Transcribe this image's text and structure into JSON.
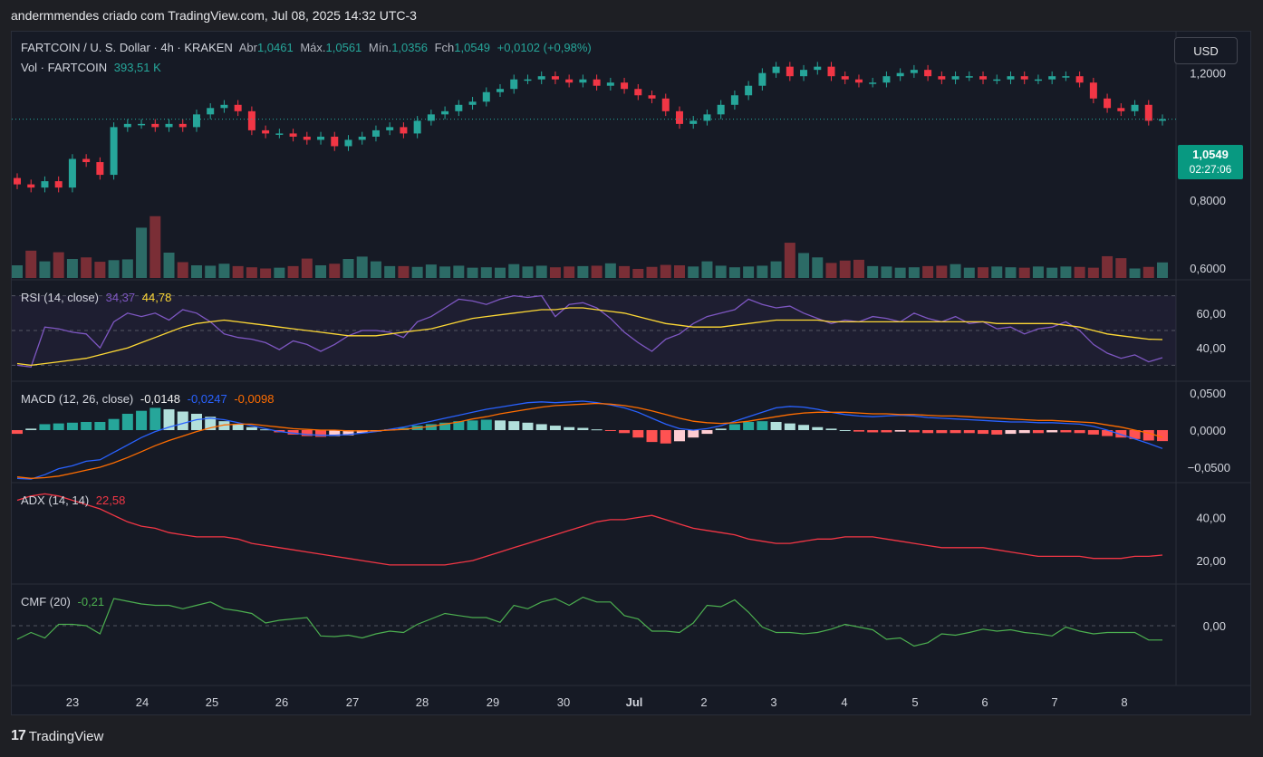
{
  "header": {
    "author_line": "andermmendes criado com TradingView.com, Jul 08, 2025 14:32 UTC-3"
  },
  "price_pane": {
    "symbol": "FARTCOIN / U. S. Dollar · 4h · KRAKEN",
    "open_label": "Abr",
    "open": "1,0461",
    "high_label": "Máx.",
    "high": "1,0561",
    "low_label": "Mín.",
    "low": "1,0356",
    "close_label": "Fch",
    "close": "1,0549",
    "change": "+0,0102 (+0,98%)",
    "vol_label": "Vol · FARTCOIN",
    "vol_value": "393,51 K",
    "currency_button": "USD",
    "last_price": "1,0549",
    "countdown": "02:27:06",
    "y_ticks": [
      "1,2000",
      "0,8000",
      "0,6000"
    ]
  },
  "rsi_pane": {
    "label": "RSI (14, close)",
    "rsi": "34,37",
    "ma": "44,78",
    "y_ticks": [
      "60,00",
      "40,00"
    ]
  },
  "macd_pane": {
    "label": "MACD (12, 26, close)",
    "hist": "-0,0148",
    "macd": "-0,0247",
    "signal": "-0,0098",
    "y_ticks": [
      "0,0500",
      "0,0000",
      "−0,0500"
    ]
  },
  "adx_pane": {
    "label": "ADX (14, 14)",
    "value": "22,58",
    "y_ticks": [
      "40,00",
      "20,00"
    ]
  },
  "cmf_pane": {
    "label": "CMF (20)",
    "value": "-0,21",
    "y_ticks": [
      "0,00"
    ]
  },
  "x_axis": [
    "23",
    "24",
    "25",
    "26",
    "27",
    "28",
    "29",
    "30",
    "Jul",
    "2",
    "3",
    "4",
    "5",
    "6",
    "7",
    "8"
  ],
  "brand": "TradingView",
  "colors": {
    "up": "#26a69a",
    "down": "#f23645",
    "rsi": "#7e57c2",
    "rsi_ma": "#fdd835",
    "macd": "#2962ff",
    "signal": "#ff6d00",
    "adx": "#f23645",
    "cmf": "#4caf50"
  },
  "chart_data": {
    "type": "line",
    "close_series": [
      0.85,
      0.84,
      0.86,
      0.84,
      0.93,
      0.92,
      0.88,
      1.03,
      1.04,
      1.04,
      1.03,
      1.04,
      1.03,
      1.07,
      1.09,
      1.1,
      1.08,
      1.02,
      1.01,
      1.01,
      1.0,
      0.99,
      1.0,
      0.97,
      0.99,
      1.0,
      1.02,
      1.03,
      1.01,
      1.05,
      1.07,
      1.08,
      1.1,
      1.11,
      1.14,
      1.15,
      1.18,
      1.18,
      1.19,
      1.18,
      1.17,
      1.18,
      1.16,
      1.17,
      1.15,
      1.13,
      1.12,
      1.08,
      1.04,
      1.05,
      1.07,
      1.1,
      1.13,
      1.16,
      1.2,
      1.22,
      1.19,
      1.21,
      1.22,
      1.19,
      1.18,
      1.17,
      1.17,
      1.19,
      1.2,
      1.21,
      1.19,
      1.18,
      1.19,
      1.19,
      1.18,
      1.18,
      1.19,
      1.18,
      1.18,
      1.19,
      1.19,
      1.17,
      1.12,
      1.09,
      1.08,
      1.1,
      1.05,
      1.055
    ],
    "volume_k": [
      320,
      690,
      420,
      650,
      480,
      520,
      410,
      450,
      470,
      1270,
      1560,
      640,
      400,
      320,
      310,
      360,
      300,
      270,
      240,
      260,
      300,
      490,
      320,
      360,
      480,
      540,
      420,
      300,
      300,
      280,
      340,
      290,
      310,
      260,
      270,
      260,
      350,
      290,
      310,
      270,
      290,
      300,
      310,
      370,
      300,
      230,
      280,
      330,
      320,
      290,
      420,
      310,
      270,
      290,
      310,
      420,
      890,
      630,
      520,
      380,
      440,
      460,
      300,
      290,
      260,
      270,
      300,
      310,
      350,
      260,
      270,
      290,
      270,
      260,
      290,
      260,
      290,
      280,
      260,
      550,
      500,
      240,
      280,
      393.51
    ],
    "rsi": [
      30,
      29,
      52,
      51,
      49,
      48,
      40,
      55,
      60,
      58,
      60,
      56,
      62,
      60,
      55,
      48,
      46,
      45,
      43,
      39,
      44,
      42,
      38,
      42,
      47,
      50,
      50,
      49,
      46,
      55,
      58,
      63,
      68,
      67,
      65,
      68,
      70,
      69,
      70,
      58,
      65,
      66,
      63,
      57,
      49,
      43,
      38,
      45,
      48,
      54,
      58,
      60,
      62,
      68,
      65,
      63,
      64,
      60,
      57,
      54,
      56,
      55,
      58,
      57,
      55,
      60,
      57,
      55,
      58,
      54,
      55,
      51,
      52,
      48,
      51,
      52,
      55,
      50,
      42,
      37,
      34,
      36,
      32,
      34.37
    ],
    "rsi_ma": [
      31,
      30,
      31,
      32,
      33,
      34,
      36,
      38,
      40,
      43,
      46,
      49,
      52,
      54,
      55,
      56,
      55,
      54,
      53,
      52,
      51,
      50,
      49,
      48,
      47,
      47,
      47,
      48,
      49,
      50,
      51,
      53,
      55,
      57,
      58,
      59,
      60,
      61,
      62,
      62,
      63,
      63,
      62,
      61,
      60,
      58,
      56,
      54,
      53,
      52,
      52,
      52,
      53,
      54,
      55,
      56,
      56,
      56,
      56,
      55,
      55,
      55,
      55,
      55,
      55,
      55,
      55,
      55,
      55,
      55,
      55,
      54,
      54,
      54,
      54,
      54,
      53,
      52,
      50,
      48,
      47,
      46,
      45,
      44.78
    ],
    "macd_hist": [
      -0.005,
      0.002,
      0.008,
      0.009,
      0.01,
      0.011,
      0.011,
      0.015,
      0.022,
      0.026,
      0.03,
      0.028,
      0.025,
      0.022,
      0.018,
      0.012,
      0.008,
      0.004,
      0.001,
      -0.003,
      -0.006,
      -0.008,
      -0.009,
      -0.008,
      -0.007,
      -0.004,
      -0.002,
      0.001,
      0.003,
      0.006,
      0.008,
      0.01,
      0.012,
      0.013,
      0.014,
      0.013,
      0.012,
      0.01,
      0.008,
      0.006,
      0.004,
      0.003,
      0.001,
      -0.001,
      -0.004,
      -0.01,
      -0.016,
      -0.018,
      -0.015,
      -0.01,
      -0.005,
      0.002,
      0.008,
      0.011,
      0.012,
      0.011,
      0.009,
      0.007,
      0.004,
      0.002,
      0.0,
      -0.002,
      -0.003,
      -0.003,
      -0.002,
      -0.003,
      -0.004,
      -0.004,
      -0.004,
      -0.004,
      -0.005,
      -0.006,
      -0.005,
      -0.004,
      -0.004,
      -0.003,
      -0.003,
      -0.004,
      -0.006,
      -0.008,
      -0.01,
      -0.012,
      -0.014,
      -0.0148
    ],
    "macd": [
      -0.065,
      -0.066,
      -0.06,
      -0.052,
      -0.048,
      -0.042,
      -0.04,
      -0.03,
      -0.02,
      -0.01,
      -0.002,
      0.004,
      0.009,
      0.014,
      0.016,
      0.014,
      0.01,
      0.006,
      0.002,
      -0.002,
      -0.004,
      -0.006,
      -0.007,
      -0.007,
      -0.006,
      -0.004,
      -0.002,
      0.001,
      0.004,
      0.008,
      0.012,
      0.016,
      0.02,
      0.024,
      0.028,
      0.031,
      0.034,
      0.037,
      0.038,
      0.037,
      0.038,
      0.039,
      0.037,
      0.034,
      0.03,
      0.024,
      0.016,
      0.008,
      0.002,
      0.0,
      0.002,
      0.006,
      0.012,
      0.018,
      0.024,
      0.03,
      0.032,
      0.031,
      0.028,
      0.024,
      0.021,
      0.019,
      0.018,
      0.019,
      0.02,
      0.019,
      0.017,
      0.016,
      0.015,
      0.014,
      0.013,
      0.012,
      0.011,
      0.011,
      0.01,
      0.01,
      0.009,
      0.008,
      0.005,
      0.0,
      -0.006,
      -0.012,
      -0.018,
      -0.0247
    ],
    "signal": [
      -0.063,
      -0.065,
      -0.064,
      -0.062,
      -0.058,
      -0.054,
      -0.05,
      -0.044,
      -0.037,
      -0.029,
      -0.021,
      -0.014,
      -0.008,
      -0.002,
      0.003,
      0.007,
      0.008,
      0.008,
      0.006,
      0.004,
      0.002,
      0.001,
      0.0,
      0.0,
      -0.001,
      -0.001,
      -0.001,
      0.0,
      0.001,
      0.003,
      0.005,
      0.008,
      0.011,
      0.015,
      0.018,
      0.022,
      0.025,
      0.028,
      0.031,
      0.033,
      0.034,
      0.035,
      0.036,
      0.035,
      0.033,
      0.03,
      0.026,
      0.021,
      0.016,
      0.012,
      0.01,
      0.009,
      0.01,
      0.012,
      0.015,
      0.018,
      0.021,
      0.023,
      0.024,
      0.024,
      0.024,
      0.023,
      0.022,
      0.022,
      0.021,
      0.021,
      0.02,
      0.019,
      0.019,
      0.018,
      0.017,
      0.016,
      0.015,
      0.014,
      0.013,
      0.013,
      0.012,
      0.011,
      0.01,
      0.007,
      0.004,
      0.0,
      -0.004,
      -0.0098
    ],
    "adx": [
      48,
      50,
      51,
      50,
      48,
      46,
      44,
      41,
      38,
      36,
      35,
      33,
      32,
      31,
      31,
      31,
      30,
      28,
      27,
      26,
      25,
      24,
      23,
      22,
      21,
      20,
      19,
      18,
      18,
      18,
      18,
      18,
      19,
      20,
      22,
      24,
      26,
      28,
      30,
      32,
      34,
      36,
      38,
      39,
      39,
      40,
      41,
      39,
      37,
      35,
      34,
      33,
      32,
      30,
      29,
      28,
      28,
      29,
      30,
      30,
      31,
      31,
      31,
      30,
      29,
      28,
      27,
      26,
      26,
      26,
      26,
      25,
      24,
      23,
      22,
      22,
      22,
      22,
      21,
      21,
      21,
      22,
      22,
      22.58
    ],
    "cmf": [
      -0.2,
      -0.1,
      -0.18,
      0.02,
      0.02,
      0.0,
      -0.12,
      0.4,
      0.36,
      0.32,
      0.3,
      0.3,
      0.25,
      0.3,
      0.35,
      0.25,
      0.22,
      0.18,
      0.04,
      0.08,
      0.1,
      0.12,
      -0.15,
      -0.16,
      -0.14,
      -0.18,
      -0.12,
      -0.08,
      -0.1,
      0.02,
      0.1,
      0.18,
      0.15,
      0.12,
      0.12,
      0.05,
      0.3,
      0.25,
      0.35,
      0.4,
      0.3,
      0.42,
      0.35,
      0.35,
      0.15,
      0.1,
      -0.08,
      -0.08,
      -0.1,
      0.04,
      0.3,
      0.28,
      0.38,
      0.2,
      -0.02,
      -0.1,
      -0.1,
      -0.12,
      -0.1,
      -0.05,
      0.02,
      -0.02,
      -0.06,
      -0.2,
      -0.18,
      -0.3,
      -0.25,
      -0.12,
      -0.14,
      -0.1,
      -0.05,
      -0.08,
      -0.06,
      -0.1,
      -0.12,
      -0.15,
      -0.02,
      -0.08,
      -0.12,
      -0.1,
      -0.1,
      -0.1,
      -0.21,
      -0.21
    ]
  }
}
